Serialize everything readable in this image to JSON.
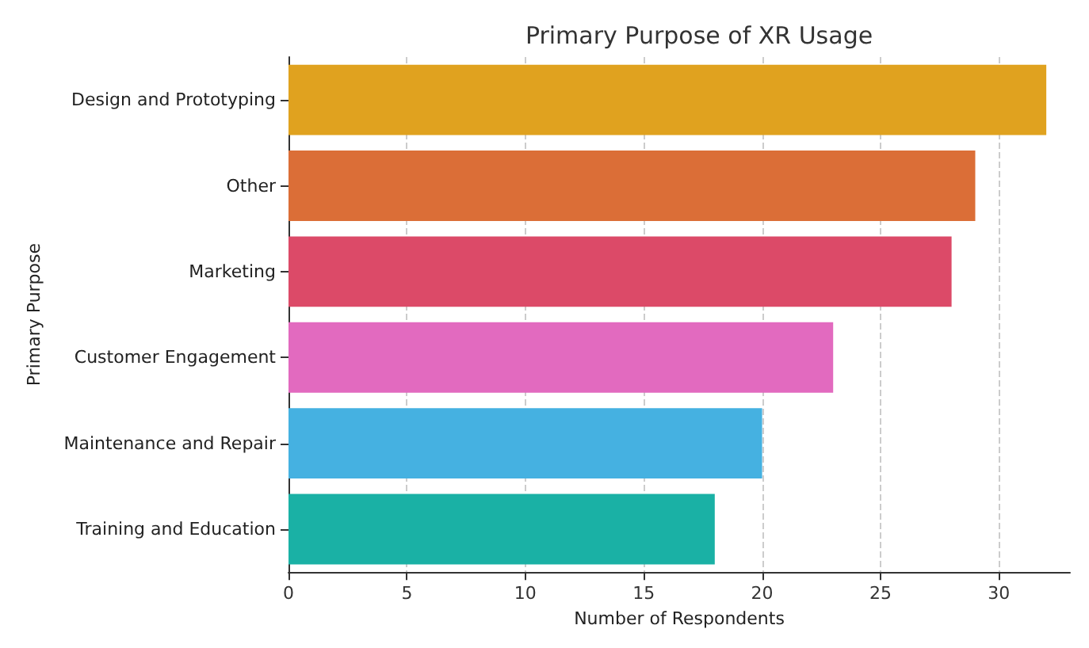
{
  "chart_data": {
    "type": "bar",
    "orientation": "horizontal",
    "title": "Primary Purpose of XR Usage",
    "xlabel": "Number of Respondents",
    "ylabel": "Primary Purpose",
    "categories": [
      "Design and Prototyping",
      "Other",
      "Marketing",
      "Customer Engagement",
      "Maintenance and Repair",
      "Training and Education"
    ],
    "values": [
      32,
      29,
      28,
      23,
      20,
      18
    ],
    "colors": [
      "#e0a21f",
      "#db6e37",
      "#dc4a68",
      "#e26abf",
      "#45b1e1",
      "#1ab1a5"
    ],
    "xlim": [
      0,
      33
    ],
    "xticks": [
      0,
      5,
      10,
      15,
      20,
      25,
      30
    ],
    "grid": "x"
  }
}
